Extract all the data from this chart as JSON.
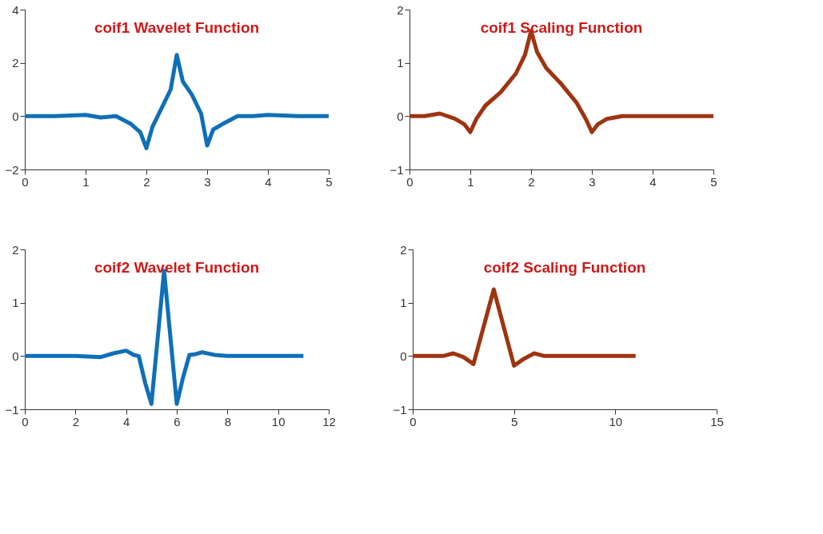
{
  "chart_data": [
    {
      "type": "line",
      "title": "coif1 Wavelet Function",
      "xlim": [
        0,
        5
      ],
      "xticks": [
        0,
        1,
        2,
        3,
        4,
        5
      ],
      "ylim": [
        -2,
        4
      ],
      "yticks": [
        -2,
        0,
        2,
        4
      ],
      "grid": false,
      "series": [
        {
          "color": "#0f6fb8",
          "x": [
            0,
            0.5,
            1,
            1.25,
            1.5,
            1.75,
            1.9,
            2,
            2.1,
            2.25,
            2.4,
            2.5,
            2.6,
            2.75,
            2.9,
            3,
            3.1,
            3.25,
            3.5,
            3.75,
            4,
            4.5,
            5
          ],
          "values": [
            0,
            0,
            0.05,
            -0.05,
            0,
            -0.3,
            -0.6,
            -1.2,
            -0.4,
            0.3,
            1.0,
            2.3,
            1.3,
            0.8,
            0.1,
            -1.1,
            -0.5,
            -0.3,
            0,
            0,
            0.05,
            0,
            0
          ]
        }
      ]
    },
    {
      "type": "line",
      "title": "coif1 Scaling Function",
      "xlim": [
        0,
        5
      ],
      "xticks": [
        0,
        1,
        2,
        3,
        4,
        5
      ],
      "ylim": [
        -1,
        2
      ],
      "yticks": [
        -1,
        0,
        1,
        2
      ],
      "grid": false,
      "series": [
        {
          "color": "#9e3410",
          "x": [
            0,
            0.25,
            0.5,
            0.75,
            0.9,
            1,
            1.1,
            1.25,
            1.5,
            1.75,
            1.9,
            2,
            2.1,
            2.25,
            2.5,
            2.75,
            2.9,
            3,
            3.1,
            3.25,
            3.5,
            4,
            5
          ],
          "values": [
            0,
            0,
            0.05,
            -0.05,
            -0.15,
            -0.3,
            -0.05,
            0.2,
            0.45,
            0.8,
            1.15,
            1.6,
            1.2,
            0.9,
            0.6,
            0.25,
            -0.05,
            -0.3,
            -0.15,
            -0.05,
            0,
            0,
            0
          ]
        }
      ]
    },
    {
      "type": "line",
      "title": "coif2 Wavelet Function",
      "xlim": [
        0,
        12
      ],
      "xticks": [
        0,
        2,
        4,
        6,
        8,
        10,
        12
      ],
      "ylim": [
        -1,
        2
      ],
      "yticks": [
        -1,
        0,
        1,
        2
      ],
      "grid": false,
      "series": [
        {
          "color": "#0f6fb8",
          "x": [
            0,
            2,
            3,
            3.5,
            4,
            4.3,
            4.5,
            4.75,
            5,
            5.5,
            6,
            6.25,
            6.5,
            6.7,
            7,
            7.5,
            8,
            11
          ],
          "values": [
            0,
            0,
            -0.02,
            0.05,
            0.1,
            0.02,
            0,
            -0.5,
            -0.9,
            1.6,
            -0.9,
            -0.4,
            0.02,
            0.03,
            0.07,
            0.02,
            0,
            0
          ]
        }
      ]
    },
    {
      "type": "line",
      "title": "coif2 Scaling Function",
      "xlim": [
        0,
        15
      ],
      "xticks": [
        0,
        5,
        10,
        15
      ],
      "ylim": [
        -1,
        2
      ],
      "yticks": [
        -1,
        0,
        1,
        2
      ],
      "grid": false,
      "series": [
        {
          "color": "#9e3410",
          "x": [
            0,
            1.5,
            2,
            2.5,
            3,
            4,
            5,
            5.5,
            6,
            6.5,
            11
          ],
          "values": [
            0,
            0,
            0.05,
            -0.02,
            -0.15,
            1.25,
            -0.18,
            -0.05,
            0.05,
            0,
            0
          ]
        }
      ]
    }
  ]
}
